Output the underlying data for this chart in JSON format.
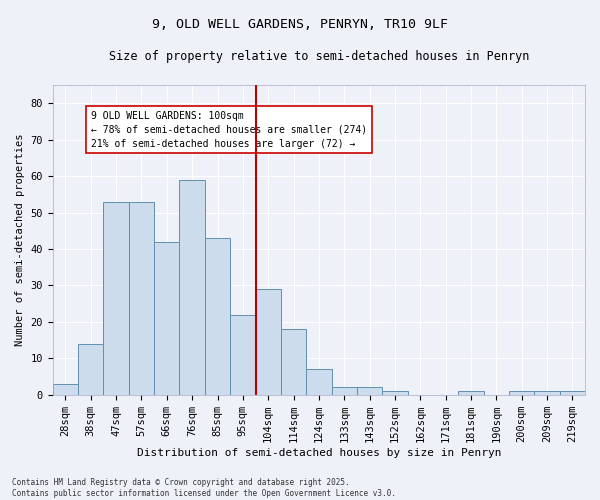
{
  "title1": "9, OLD WELL GARDENS, PENRYN, TR10 9LF",
  "title2": "Size of property relative to semi-detached houses in Penryn",
  "xlabel": "Distribution of semi-detached houses by size in Penryn",
  "ylabel": "Number of semi-detached properties",
  "categories": [
    "28sqm",
    "38sqm",
    "47sqm",
    "57sqm",
    "66sqm",
    "76sqm",
    "85sqm",
    "95sqm",
    "104sqm",
    "114sqm",
    "124sqm",
    "133sqm",
    "143sqm",
    "152sqm",
    "162sqm",
    "171sqm",
    "181sqm",
    "190sqm",
    "200sqm",
    "209sqm",
    "219sqm"
  ],
  "values": [
    3,
    14,
    53,
    53,
    42,
    59,
    43,
    22,
    29,
    18,
    7,
    2,
    2,
    1,
    0,
    0,
    1,
    0,
    1,
    1,
    1
  ],
  "bar_color": "#ccdcec",
  "bar_edge_color": "#6090b0",
  "vline_color": "#bb0000",
  "vline_x_index": 7.5,
  "annotation_text": "9 OLD WELL GARDENS: 100sqm\n← 78% of semi-detached houses are smaller (274)\n21% of semi-detached houses are larger (72) →",
  "ylim": [
    0,
    85
  ],
  "yticks": [
    0,
    10,
    20,
    30,
    40,
    50,
    60,
    70,
    80
  ],
  "footer1": "Contains HM Land Registry data © Crown copyright and database right 2025.",
  "footer2": "Contains public sector information licensed under the Open Government Licence v3.0.",
  "bg_color": "#eef2f8",
  "grid_color": "#ffffff",
  "title_fontsize": 9.5,
  "subtitle_fontsize": 8.5,
  "tick_fontsize": 7.5,
  "ylabel_fontsize": 7.5,
  "xlabel_fontsize": 8,
  "annotation_fontsize": 7,
  "footer_fontsize": 5.5
}
